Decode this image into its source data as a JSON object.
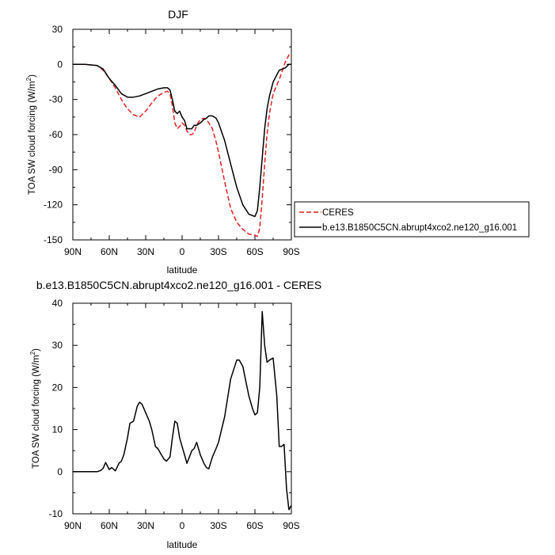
{
  "chart_data": [
    {
      "type": "line",
      "title": "DJF",
      "xlabel": "latitude",
      "ylabel": "TOA SW cloud forcing (W/m²)",
      "xlim": [
        90,
        -90
      ],
      "ylim": [
        -150,
        30
      ],
      "xtick_values": [
        90,
        60,
        30,
        0,
        -30,
        -60,
        -90
      ],
      "xtick_labels": [
        "90N",
        "60N",
        "30N",
        "0",
        "30S",
        "60S",
        "90S"
      ],
      "ytick_values": [
        30,
        0,
        -30,
        -60,
        -90,
        -120,
        -150
      ],
      "ytick_labels": [
        "30",
        "0",
        "-30",
        "-60",
        "-90",
        "-120",
        "-150"
      ],
      "grid": false,
      "legend_position": "right",
      "series": [
        {
          "name": "CERES",
          "color": "#e02020",
          "dash": "dashed",
          "x": [
            90,
            80,
            70,
            65,
            60,
            55,
            50,
            45,
            40,
            35,
            30,
            25,
            20,
            15,
            12,
            10,
            8,
            6,
            4,
            2,
            0,
            -2,
            -4,
            -6,
            -8,
            -10,
            -12,
            -15,
            -18,
            -20,
            -22,
            -25,
            -28,
            -30,
            -35,
            -40,
            -45,
            -50,
            -55,
            -60,
            -62,
            -64,
            -66,
            -68,
            -70,
            -72,
            -75,
            -80,
            -85,
            -88,
            -90
          ],
          "y": [
            0,
            0,
            -1,
            -5,
            -12,
            -20,
            -30,
            -38,
            -43,
            -45,
            -40,
            -33,
            -27,
            -24,
            -23,
            -25,
            -35,
            -50,
            -55,
            -53,
            -50,
            -52,
            -57,
            -60,
            -60,
            -58,
            -52,
            -47,
            -46,
            -47,
            -50,
            -55,
            -66,
            -75,
            -100,
            -123,
            -135,
            -141,
            -145,
            -146,
            -147,
            -140,
            -115,
            -85,
            -60,
            -42,
            -25,
            -13,
            2,
            8,
            8
          ]
        },
        {
          "name": "b.e13.B1850C5CN.abrupt4xco2.ne120_g16.001",
          "color": "#000000",
          "dash": "solid",
          "x": [
            90,
            80,
            70,
            65,
            60,
            55,
            50,
            45,
            40,
            35,
            30,
            25,
            20,
            15,
            12,
            10,
            8,
            6,
            4,
            2,
            0,
            -2,
            -4,
            -6,
            -8,
            -10,
            -12,
            -15,
            -18,
            -20,
            -22,
            -25,
            -28,
            -30,
            -35,
            -40,
            -45,
            -50,
            -55,
            -60,
            -62,
            -64,
            -66,
            -68,
            -70,
            -72,
            -75,
            -80,
            -85,
            -88,
            -90
          ],
          "y": [
            0,
            0,
            -1,
            -4,
            -12,
            -18,
            -25,
            -28,
            -28,
            -27,
            -25,
            -23,
            -21,
            -20,
            -20,
            -22,
            -30,
            -40,
            -42,
            -40,
            -45,
            -48,
            -55,
            -55,
            -55,
            -52,
            -52,
            -50,
            -47,
            -46,
            -44,
            -44,
            -46,
            -50,
            -65,
            -85,
            -105,
            -120,
            -128,
            -130,
            -125,
            -105,
            -80,
            -55,
            -38,
            -27,
            -15,
            -5,
            -3,
            0,
            0
          ]
        }
      ]
    },
    {
      "type": "line",
      "title": "b.e13.B1850C5CN.abrupt4xco2.ne120_g16.001 - CERES",
      "xlabel": "latitude",
      "ylabel": "TOA SW cloud forcing (W/m²)",
      "xlim": [
        90,
        -90
      ],
      "ylim": [
        -10,
        40
      ],
      "xtick_values": [
        90,
        60,
        30,
        0,
        -30,
        -60,
        -90
      ],
      "xtick_labels": [
        "90N",
        "60N",
        "30N",
        "0",
        "30S",
        "60S",
        "90S"
      ],
      "ytick_values": [
        40,
        30,
        20,
        10,
        0,
        -10
      ],
      "ytick_labels": [
        "40",
        "30",
        "20",
        "10",
        "0",
        "-10"
      ],
      "grid": false,
      "series": [
        {
          "color": "#000000",
          "dash": "solid",
          "x": [
            90,
            80,
            75,
            70,
            67,
            65,
            63,
            60,
            58,
            55,
            52,
            50,
            48,
            45,
            43,
            40,
            37,
            35,
            33,
            30,
            27,
            25,
            22,
            20,
            17,
            15,
            13,
            10,
            8,
            6,
            4,
            2,
            0,
            -2,
            -4,
            -6,
            -8,
            -10,
            -12,
            -15,
            -18,
            -20,
            -22,
            -25,
            -28,
            -30,
            -35,
            -40,
            -45,
            -47,
            -50,
            -55,
            -58,
            -60,
            -62,
            -64,
            -66,
            -68,
            -70,
            -72,
            -75,
            -78,
            -80,
            -82,
            -84,
            -86,
            -88,
            -90
          ],
          "y": [
            0,
            0,
            0,
            0,
            0.3,
            0.8,
            2.2,
            0.5,
            1,
            0.2,
            2,
            2.5,
            4,
            8,
            11.5,
            12,
            15.5,
            16.5,
            16,
            14,
            12,
            10,
            6,
            5.5,
            4,
            3,
            2.5,
            3.5,
            8,
            12,
            11.5,
            8,
            6,
            4,
            2,
            3.5,
            5,
            5.5,
            7,
            4,
            2,
            1,
            0.7,
            3.5,
            5.5,
            7,
            13,
            22,
            26.5,
            26.5,
            25,
            18,
            15,
            13.5,
            14,
            20,
            38,
            30,
            26,
            26.5,
            27,
            18,
            6,
            6,
            6.5,
            -4,
            -9,
            -8
          ]
        }
      ]
    }
  ]
}
